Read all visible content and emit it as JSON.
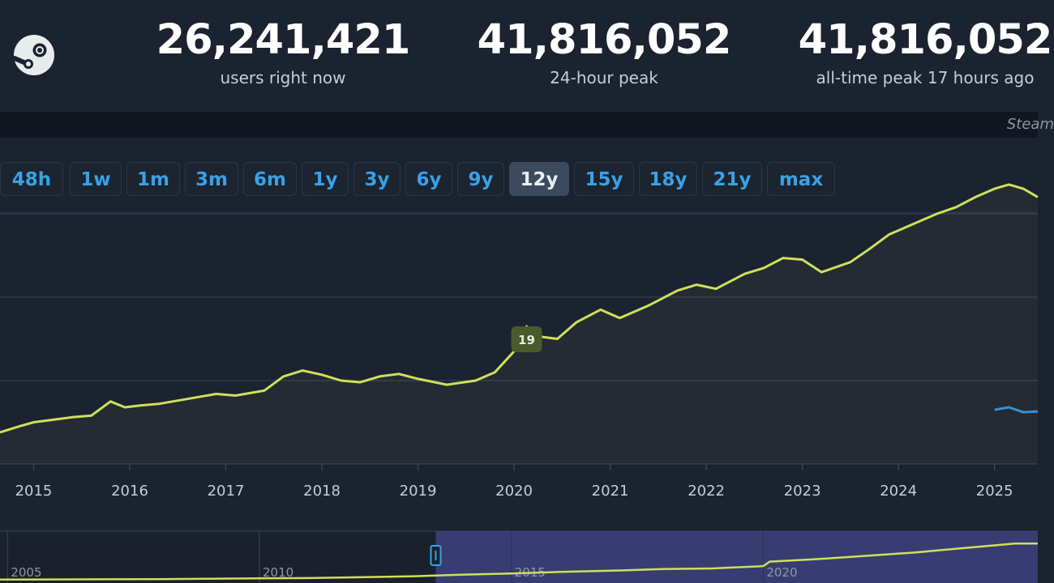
{
  "header": {
    "logo_icon": "steam-logo-icon",
    "stats": [
      {
        "value": "26,241,421",
        "label": "users right now"
      },
      {
        "value": "41,816,052",
        "label": "24-hour peak"
      },
      {
        "value": "41,816,052",
        "label": "all-time peak 17 hours ago"
      }
    ]
  },
  "credit": "Steam",
  "ranges": {
    "items": [
      "48h",
      "1w",
      "1m",
      "3m",
      "6m",
      "1y",
      "3y",
      "6y",
      "9y",
      "12y",
      "15y",
      "18y",
      "21y",
      "max"
    ],
    "active": "12y"
  },
  "chart_data": {
    "type": "line",
    "xlim": [
      2014.65,
      2025.45
    ],
    "x_ticks": [
      "2015",
      "2016",
      "2017",
      "2018",
      "2019",
      "2020",
      "2021",
      "2022",
      "2023",
      "2024",
      "2025"
    ],
    "grid": true,
    "colors": {
      "main": "#cfe05a",
      "secondary": "#3a8fd0",
      "marker_bg": "#4b5a2c"
    },
    "annotation": {
      "text": "19",
      "x": 2020.13
    },
    "series": [
      {
        "color": "#cfe05a",
        "x": [
          2014.65,
          2014.85,
          2015.0,
          2015.2,
          2015.4,
          2015.6,
          2015.8,
          2015.95,
          2016.1,
          2016.3,
          2016.6,
          2016.9,
          2017.1,
          2017.4,
          2017.6,
          2017.8,
          2018.0,
          2018.2,
          2018.4,
          2018.6,
          2018.8,
          2019.0,
          2019.3,
          2019.6,
          2019.8,
          2020.0,
          2020.13,
          2020.25,
          2020.45,
          2020.65,
          2020.9,
          2021.1,
          2021.4,
          2021.7,
          2021.9,
          2022.1,
          2022.4,
          2022.6,
          2022.8,
          2023.0,
          2023.2,
          2023.5,
          2023.7,
          2023.9,
          2024.2,
          2024.4,
          2024.6,
          2024.8,
          2025.0,
          2025.15,
          2025.3,
          2025.45
        ],
        "y": [
          0.38,
          0.45,
          0.5,
          0.53,
          0.56,
          0.58,
          0.75,
          0.68,
          0.7,
          0.72,
          0.78,
          0.84,
          0.82,
          0.88,
          1.05,
          1.12,
          1.07,
          1.0,
          0.98,
          1.05,
          1.08,
          1.02,
          0.95,
          1.0,
          1.1,
          1.35,
          1.65,
          1.53,
          1.5,
          1.7,
          1.85,
          1.75,
          1.9,
          2.08,
          2.15,
          2.1,
          2.28,
          2.35,
          2.47,
          2.45,
          2.3,
          2.42,
          2.58,
          2.75,
          2.9,
          3.0,
          3.08,
          3.2,
          3.3,
          3.35,
          3.3,
          3.2
        ]
      },
      {
        "color": "#3a8fd0",
        "x": [
          2025.0,
          2025.15,
          2025.3,
          2025.45
        ],
        "y": [
          0.65,
          0.68,
          0.62,
          0.63
        ]
      }
    ]
  },
  "navigator": {
    "labels": [
      {
        "text": "2005",
        "x": 2005.0
      },
      {
        "text": "2010",
        "x": 2010.0
      },
      {
        "text": "2015",
        "x": 2015.0
      },
      {
        "text": "2020",
        "x": 2020.0
      }
    ],
    "xlim": [
      2004.85,
      2025.45
    ],
    "selection": [
      2013.5,
      2025.45
    ],
    "line": {
      "x": [
        2004.85,
        2006.0,
        2007.0,
        2008.0,
        2009.0,
        2010.0,
        2011.0,
        2012.0,
        2013.0,
        2014.0,
        2015.0,
        2016.0,
        2017.0,
        2018.0,
        2019.0,
        2020.0,
        2020.13,
        2021.0,
        2022.0,
        2023.0,
        2024.0,
        2025.0,
        2025.45
      ],
      "y": [
        0.02,
        0.03,
        0.04,
        0.06,
        0.09,
        0.12,
        0.15,
        0.22,
        0.3,
        0.45,
        0.55,
        0.7,
        0.8,
        0.95,
        1.0,
        1.2,
        1.6,
        1.8,
        2.1,
        2.4,
        2.8,
        3.2,
        3.2
      ]
    }
  }
}
